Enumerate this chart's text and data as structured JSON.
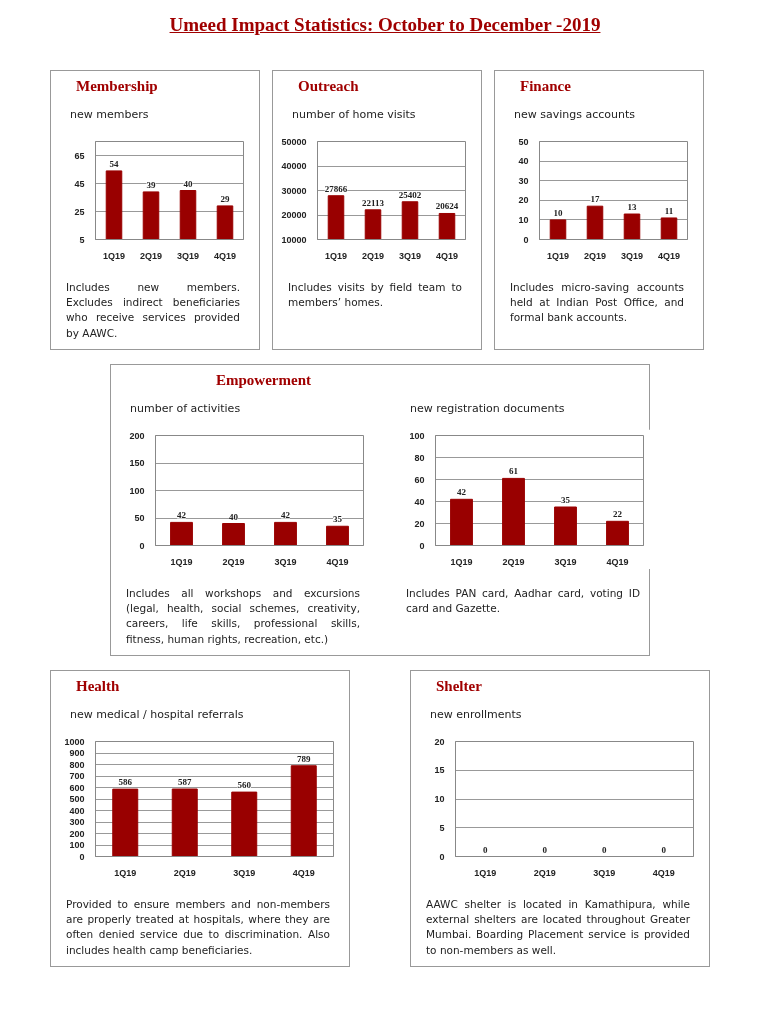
{
  "chart_data": [
    {
      "type": "other",
      "title": "Umeed Impact Statistics: October to December -2019"
    },
    {
      "type": "bar",
      "title": "Membership",
      "subtitle": "new members",
      "categories": [
        "1Q19",
        "2Q19",
        "3Q19",
        "4Q19"
      ],
      "values": [
        54,
        39,
        40,
        29
      ],
      "color": "#990000",
      "ylim": [
        5,
        75
      ],
      "yticks": [
        5,
        25,
        45,
        65
      ],
      "grid": "y",
      "data_labels": true,
      "annotations": [
        "Includes new members. Excludes indirect beneficiaries who receive services provided by AAWC."
      ]
    },
    {
      "type": "bar",
      "title": "Outreach",
      "subtitle": "number of  home visits",
      "categories": [
        "1Q19",
        "2Q19",
        "3Q19",
        "4Q19"
      ],
      "values": [
        27866,
        22113,
        25402,
        20624
      ],
      "color": "#990000",
      "ylim": [
        10000,
        50000
      ],
      "yticks": [
        10000,
        20000,
        30000,
        40000,
        50000
      ],
      "grid": "y",
      "data_labels": true,
      "annotations": [
        "Includes visits by field team to members’ homes."
      ]
    },
    {
      "type": "bar",
      "title": "Finance",
      "subtitle": "new savings accounts",
      "categories": [
        "1Q19",
        "2Q19",
        "3Q19",
        "4Q19"
      ],
      "values": [
        10,
        17,
        13,
        11
      ],
      "color": "#990000",
      "ylim": [
        0,
        50
      ],
      "yticks": [
        0,
        10,
        20,
        30,
        40,
        50
      ],
      "grid": "y",
      "data_labels": true,
      "annotations": [
        "Includes micro-saving accounts held at Indian Post Office, and formal bank accounts."
      ]
    },
    {
      "type": "bar",
      "title": "Empowerment",
      "subtitle": "number of activities",
      "categories": [
        "1Q19",
        "2Q19",
        "3Q19",
        "4Q19"
      ],
      "values": [
        42,
        40,
        42,
        35
      ],
      "color": "#990000",
      "ylim": [
        0,
        200
      ],
      "yticks": [
        0,
        50,
        100,
        150,
        200
      ],
      "grid": "y",
      "data_labels": true,
      "annotations": [
        "Includes all workshops and excursions (legal, health, social schemes, creativity, careers, life skills, professional skills, fitness, human rights, recreation, etc.)"
      ]
    },
    {
      "type": "bar",
      "subtitle": "new registration documents",
      "categories": [
        "1Q19",
        "2Q19",
        "3Q19",
        "4Q19"
      ],
      "values": [
        42,
        61,
        35,
        22
      ],
      "color": "#990000",
      "ylim": [
        0,
        100
      ],
      "yticks": [
        0,
        20,
        40,
        60,
        80,
        100
      ],
      "grid": "y",
      "data_labels": true,
      "annotations": [
        "Includes  PAN card, Aadhar card, voting ID card and Gazette."
      ]
    },
    {
      "type": "bar",
      "title": "Health",
      "subtitle": "new medical / hospital referrals",
      "categories": [
        "1Q19",
        "2Q19",
        "3Q19",
        "4Q19"
      ],
      "values": [
        586,
        587,
        560,
        789
      ],
      "color": "#990000",
      "ylim": [
        0,
        1000
      ],
      "yticks": [
        0,
        100,
        200,
        300,
        400,
        500,
        600,
        700,
        800,
        900,
        1000
      ],
      "grid": "y",
      "data_labels": true,
      "annotations": [
        "Provided to ensure members and non-members are properly treated at hospitals, where they are often denied service due to discrimination. Also includes health camp beneficiaries."
      ]
    },
    {
      "type": "bar",
      "title": "Shelter",
      "subtitle": "new enrollments",
      "categories": [
        "1Q19",
        "2Q19",
        "3Q19",
        "4Q19"
      ],
      "values": [
        0,
        0,
        0,
        0
      ],
      "color": "#990000",
      "ylim": [
        0,
        20
      ],
      "yticks": [
        0,
        5,
        10,
        15,
        20
      ],
      "grid": "y",
      "data_labels": true,
      "annotations": [
        "AAWC shelter is located in Kamathipura, while external shelters are located throughout Greater Mumbai. Boarding Placement service is provided to non-members as well."
      ]
    }
  ]
}
